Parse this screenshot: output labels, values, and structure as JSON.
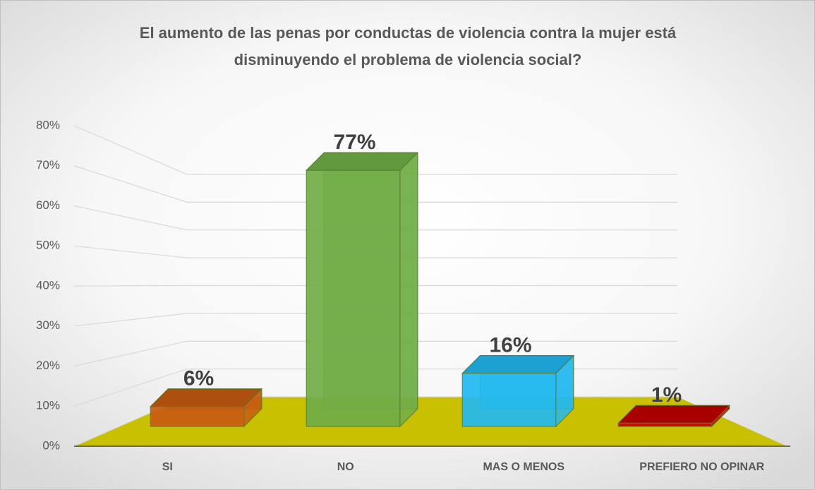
{
  "chart_data": {
    "type": "bar3d",
    "title": [
      "El aumento de las penas por conductas de violencia contra la mujer está",
      "disminuyendo el problema de violencia social?"
    ],
    "categories": [
      "SI",
      "NO",
      "MAS O MENOS",
      "PREFIERO NO OPINAR"
    ],
    "values": [
      6,
      77,
      16,
      1
    ],
    "value_labels": [
      "6%",
      "77%",
      "16%",
      "1%"
    ],
    "colors": [
      "#c55a11",
      "#70ad47",
      "#22b8f0",
      "#c00000"
    ],
    "floor_color": "#c8c000",
    "ylim": [
      0,
      80
    ],
    "yticks": [
      {
        "value": 0,
        "label": "0%"
      },
      {
        "value": 10,
        "label": "10%"
      },
      {
        "value": 20,
        "label": "20%"
      },
      {
        "value": 30,
        "label": "30%"
      },
      {
        "value": 40,
        "label": "40%"
      },
      {
        "value": 50,
        "label": "50%"
      },
      {
        "value": 60,
        "label": "60%"
      },
      {
        "value": 70,
        "label": "70%"
      },
      {
        "value": 80,
        "label": "80%"
      }
    ],
    "grid": true
  }
}
